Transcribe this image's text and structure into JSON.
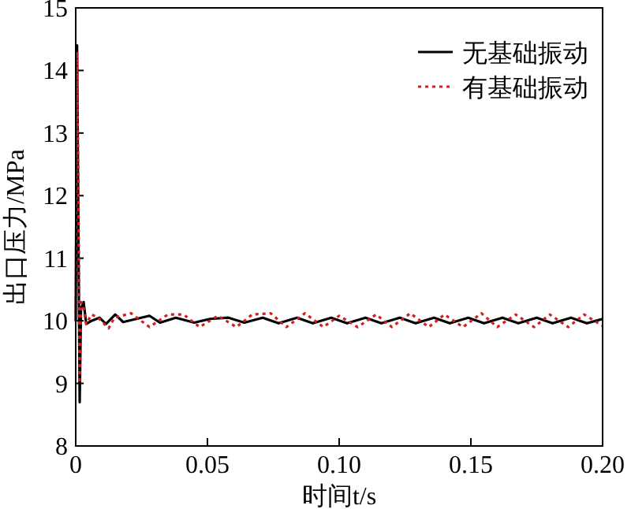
{
  "chart_data": {
    "type": "line",
    "xlabel": "时间t/s",
    "ylabel": "出口压力/MPa",
    "xlim": [
      0,
      0.2
    ],
    "ylim": [
      8,
      15
    ],
    "xticks": [
      0,
      {
        "value": 0.05,
        "label": "0.05"
      },
      {
        "value": 0.1,
        "label": "0.10"
      },
      {
        "value": 0.15,
        "label": "0.15"
      },
      {
        "value": 0.2,
        "label": "0.20"
      }
    ],
    "yticks": [
      8,
      9,
      10,
      11,
      12,
      13,
      14,
      15
    ],
    "legend": "top right",
    "grid": false,
    "series": [
      {
        "name": "无基础振动",
        "color": "#000000",
        "line_style": "solid",
        "x": [
          0,
          0.0005,
          0.001,
          0.0015,
          0.002,
          0.003,
          0.004,
          0.006,
          0.009,
          0.0115,
          0.015,
          0.018,
          0.023,
          0.028,
          0.032,
          0.038,
          0.045,
          0.051,
          0.058,
          0.064,
          0.071,
          0.077,
          0.084,
          0.09,
          0.097,
          0.103,
          0.11,
          0.116,
          0.123,
          0.129,
          0.136,
          0.142,
          0.149,
          0.155,
          0.162,
          0.168,
          0.175,
          0.181,
          0.188,
          0.194,
          0.2
        ],
        "values": [
          10,
          14.4,
          11.5,
          8.7,
          10.2,
          10.3,
          9.95,
          10,
          10.05,
          9.95,
          10.1,
          9.98,
          10.03,
          10.08,
          9.97,
          10.05,
          9.97,
          10.03,
          10.05,
          9.97,
          10.05,
          9.96,
          10.05,
          9.96,
          10.05,
          9.96,
          10.05,
          9.96,
          10.05,
          9.96,
          10.05,
          9.96,
          10.05,
          9.96,
          10.05,
          9.96,
          10.05,
          9.96,
          10.05,
          9.96,
          10.03
        ]
      },
      {
        "name": "有基础振动",
        "color": "#d02020",
        "line_style": "dotted",
        "x": [
          0,
          0.0005,
          0.001,
          0.0015,
          0.002,
          0.003,
          0.004,
          0.006,
          0.0085,
          0.0125,
          0.0147,
          0.021,
          0.028,
          0.035,
          0.041,
          0.047,
          0.054,
          0.061,
          0.067,
          0.074,
          0.08,
          0.087,
          0.094,
          0.1,
          0.107,
          0.114,
          0.12,
          0.127,
          0.134,
          0.14,
          0.147,
          0.154,
          0.16,
          0.167,
          0.174,
          0.18,
          0.187,
          0.193,
          0.2
        ],
        "values": [
          10,
          14.3,
          12,
          9,
          10.3,
          10.2,
          9.95,
          10.1,
          10.05,
          9.88,
          10.05,
          10.12,
          9.9,
          10.1,
          10.1,
          9.9,
          10.08,
          9.9,
          10.1,
          10.12,
          9.9,
          10.12,
          9.9,
          10.08,
          9.9,
          10.1,
          9.9,
          10.12,
          9.9,
          10.1,
          9.9,
          10.12,
          9.9,
          10.1,
          9.9,
          10.1,
          9.9,
          10.1,
          9.92
        ]
      }
    ]
  }
}
